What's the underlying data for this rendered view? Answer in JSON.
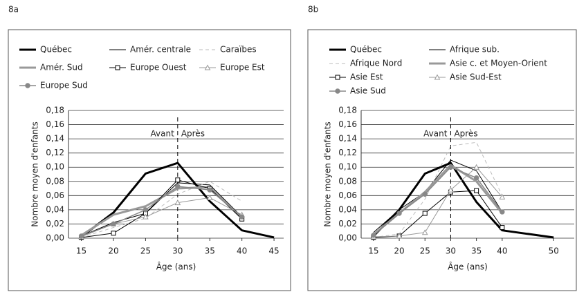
{
  "chart_data": [
    {
      "type": "line",
      "title": "8a",
      "x": [
        15,
        20,
        25,
        30,
        35,
        40,
        45
      ],
      "xlim": [
        13,
        46.5
      ],
      "xticks": [
        15,
        20,
        25,
        30,
        35,
        40,
        45
      ],
      "ylim": [
        0,
        0.18
      ],
      "yticks": [
        {
          "value": 0,
          "label": "0,00"
        },
        {
          "value": 0.02,
          "label": "0,02"
        },
        {
          "value": 0.04,
          "label": "0,04"
        },
        {
          "value": 0.06,
          "label": "0,06"
        },
        {
          "value": 0.08,
          "label": "0,08"
        },
        {
          "value": 0.1,
          "label": "0,10"
        },
        {
          "value": 0.12,
          "label": "0,12"
        },
        {
          "value": 0.14,
          "label": "0,14"
        },
        {
          "value": 0.16,
          "label": "0,16"
        },
        {
          "value": 0.18,
          "label": "0,18"
        }
      ],
      "grid": true,
      "x_label": "Âge (ans)",
      "y_label": "Nombre moyen d'enfants",
      "vline": 30,
      "annotations": [
        "Avant",
        "Après"
      ],
      "series": [
        {
          "name": "Québec",
          "color": "#000",
          "width": 3,
          "values": [
            0.002,
            0.036,
            0.091,
            0.106,
            0.052,
            0.011,
            0.001
          ]
        },
        {
          "name": "Amér. centrale",
          "color": "#000",
          "width": 1,
          "values": [
            0.003,
            0.022,
            0.035,
            0.078,
            0.075,
            0.03,
            null
          ]
        },
        {
          "name": "Caraïbes",
          "color": "#bbb",
          "width": 1,
          "dash": "5,4",
          "values": [
            0.001,
            0.015,
            0.028,
            0.062,
            0.08,
            0.052,
            null
          ]
        },
        {
          "name": "Amér. Sud",
          "color": "#999",
          "width": 3,
          "values": [
            0.004,
            0.033,
            0.045,
            0.07,
            0.072,
            0.028,
            null
          ]
        },
        {
          "name": "Europe Ouest",
          "color": "#000",
          "width": 1,
          "marker": "square",
          "values": [
            0.001,
            0.007,
            0.035,
            0.082,
            0.07,
            0.027,
            null
          ]
        },
        {
          "name": "Europe Est",
          "color": "#999",
          "width": 1,
          "marker": "triangle",
          "values": [
            0.002,
            0.02,
            0.03,
            0.05,
            0.057,
            0.033,
            null
          ]
        },
        {
          "name": "Europe Sud",
          "color": "#888",
          "width": 1.5,
          "marker": "circle",
          "values": [
            0.003,
            0.02,
            0.04,
            0.073,
            0.068,
            0.03,
            null
          ]
        }
      ]
    },
    {
      "type": "line",
      "title": "8b",
      "x": [
        15,
        20,
        25,
        30,
        35,
        40,
        50
      ],
      "xlim": [
        12.6,
        54
      ],
      "xticks": [
        15,
        20,
        25,
        30,
        35,
        40,
        50
      ],
      "ylim": [
        0,
        0.18
      ],
      "yticks": [
        {
          "value": 0,
          "label": "0,00"
        },
        {
          "value": 0.02,
          "label": "0,02"
        },
        {
          "value": 0.04,
          "label": "0,04"
        },
        {
          "value": 0.06,
          "label": "0,06"
        },
        {
          "value": 0.08,
          "label": "0,08"
        },
        {
          "value": 0.1,
          "label": "0,10"
        },
        {
          "value": 0.12,
          "label": "0,12"
        },
        {
          "value": 0.14,
          "label": "0,14"
        },
        {
          "value": 0.16,
          "label": "0,16"
        },
        {
          "value": 0.18,
          "label": "0,18"
        }
      ],
      "grid": true,
      "x_label": "Âge (ans)",
      "y_label": "Nombre moyen d'enfants",
      "vline": 30,
      "annotations": [
        "Avant",
        "Après"
      ],
      "series": [
        {
          "name": "Québec",
          "color": "#000",
          "width": 3,
          "values": [
            0.003,
            0.04,
            0.091,
            0.106,
            0.051,
            0.011,
            0.001
          ]
        },
        {
          "name": "Afrique sub.",
          "color": "#000",
          "width": 1,
          "values": [
            0.008,
            0.04,
            0.065,
            0.11,
            0.095,
            0.037,
            null
          ]
        },
        {
          "name": "Afrique Nord",
          "color": "#bbb",
          "width": 1,
          "dash": "5,4",
          "values": [
            0.001,
            0.006,
            0.055,
            0.13,
            0.135,
            0.06,
            null
          ]
        },
        {
          "name": "Asie c. et Moyen-Orient",
          "color": "#999",
          "width": 3,
          "values": [
            0.005,
            0.035,
            0.065,
            0.103,
            0.08,
            0.035,
            null
          ]
        },
        {
          "name": "Asie Est",
          "color": "#000",
          "width": 1,
          "marker": "square",
          "values": [
            0.001,
            0.003,
            0.035,
            0.065,
            0.067,
            0.015,
            null
          ]
        },
        {
          "name": "Asie Sud-Est",
          "color": "#999",
          "width": 1,
          "marker": "triangle",
          "values": [
            0.002,
            0.003,
            0.008,
            0.068,
            0.1,
            0.058,
            null
          ]
        },
        {
          "name": "Asie Sud",
          "color": "#888",
          "width": 1.5,
          "marker": "circle",
          "values": [
            0.004,
            0.035,
            0.062,
            0.1,
            0.085,
            0.037,
            null
          ]
        }
      ]
    }
  ]
}
